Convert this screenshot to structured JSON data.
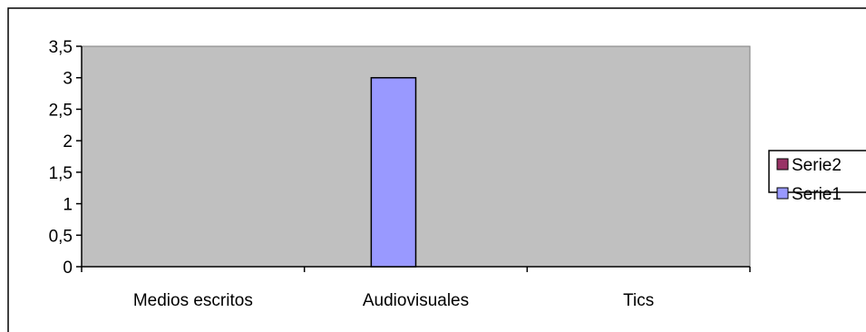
{
  "chart_data": {
    "type": "bar",
    "categories": [
      "Medios escritos",
      "Audiovisuales",
      "Tics"
    ],
    "series": [
      {
        "name": "Serie1",
        "values": [
          0,
          3,
          0
        ],
        "color": "#9999ff"
      },
      {
        "name": "Serie2",
        "values": [
          0,
          0,
          0
        ],
        "color": "#993366"
      }
    ],
    "legend_order": [
      "Serie2",
      "Serie1"
    ],
    "y_ticks": [
      "0",
      "0,5",
      "1",
      "1,5",
      "2",
      "2,5",
      "3",
      "3,5"
    ],
    "ylim": [
      0,
      3.5
    ],
    "title": "",
    "xlabel": "",
    "ylabel": "",
    "grid": false,
    "legend_position": "right",
    "plot_background": "#c0c0c0"
  }
}
